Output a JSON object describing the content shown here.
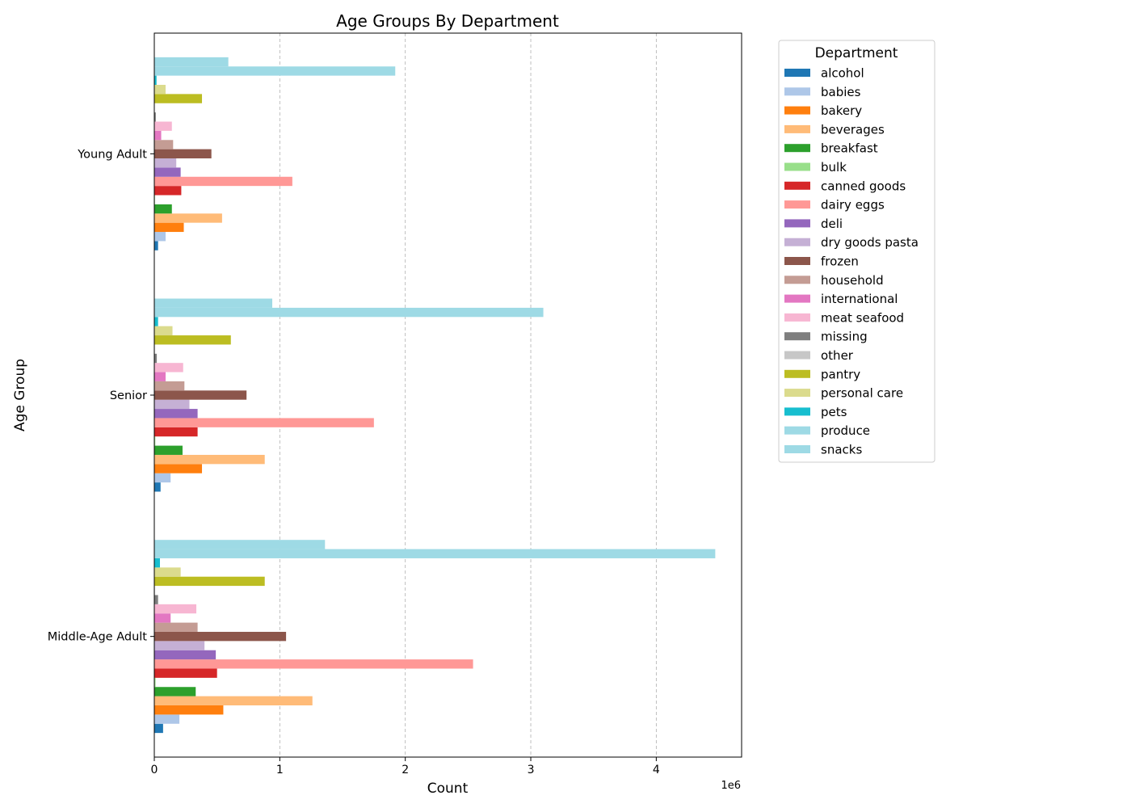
{
  "chart_data": {
    "type": "bar",
    "orientation": "horizontal",
    "title": "Age Groups By Department",
    "xlabel": "Count",
    "ylabel": "Age Group",
    "x_offset_label": "1e6",
    "xlim": [
      0,
      4.68
    ],
    "x_ticks": [
      0,
      1,
      2,
      3,
      4
    ],
    "x_tick_labels": [
      "0",
      "1",
      "2",
      "3",
      "4"
    ],
    "x_unit_multiplier": 1000000,
    "grid": "x",
    "legend_title": "Department",
    "legend_position": "outside-right",
    "categories": [
      "Middle-Age Adult",
      "Senior",
      "Young Adult"
    ],
    "series": [
      {
        "name": "alcohol",
        "color": "#1f77b4",
        "values": [
          70000,
          50000,
          30000
        ]
      },
      {
        "name": "babies",
        "color": "#aec7e8",
        "values": [
          200000,
          130000,
          90000
        ]
      },
      {
        "name": "bakery",
        "color": "#ff7f0e",
        "values": [
          550000,
          380000,
          235000
        ]
      },
      {
        "name": "beverages",
        "color": "#ffbb78",
        "values": [
          1260000,
          880000,
          540000
        ]
      },
      {
        "name": "breakfast",
        "color": "#2ca02c",
        "values": [
          330000,
          225000,
          140000
        ]
      },
      {
        "name": "bulk",
        "color": "#98df8a",
        "values": [
          10000,
          8000,
          5000
        ]
      },
      {
        "name": "canned goods",
        "color": "#d62728",
        "values": [
          500000,
          345000,
          215000
        ]
      },
      {
        "name": "dairy eggs",
        "color": "#ff9896",
        "values": [
          2540000,
          1750000,
          1100000
        ]
      },
      {
        "name": "deli",
        "color": "#9467bd",
        "values": [
          490000,
          345000,
          210000
        ]
      },
      {
        "name": "dry goods pasta",
        "color": "#c5b0d5",
        "values": [
          400000,
          280000,
          175000
        ]
      },
      {
        "name": "frozen",
        "color": "#8c564b",
        "values": [
          1050000,
          735000,
          455000
        ]
      },
      {
        "name": "household",
        "color": "#c49c94",
        "values": [
          345000,
          240000,
          150000
        ]
      },
      {
        "name": "international",
        "color": "#e377c2",
        "values": [
          130000,
          90000,
          55000
        ]
      },
      {
        "name": "meat seafood",
        "color": "#f7b6d2",
        "values": [
          335000,
          230000,
          140000
        ]
      },
      {
        "name": "missing",
        "color": "#7f7f7f",
        "values": [
          30000,
          20000,
          12000
        ]
      },
      {
        "name": "other",
        "color": "#c7c7c7",
        "values": [
          5000,
          4000,
          2000
        ]
      },
      {
        "name": "pantry",
        "color": "#bcbd22",
        "values": [
          880000,
          610000,
          380000
        ]
      },
      {
        "name": "personal care",
        "color": "#dbdb8d",
        "values": [
          210000,
          145000,
          90000
        ]
      },
      {
        "name": "pets",
        "color": "#17becf",
        "values": [
          45000,
          30000,
          18000
        ]
      },
      {
        "name": "produce",
        "color": "#9edae5",
        "values": [
          4470000,
          3100000,
          1920000
        ]
      },
      {
        "name": "snacks",
        "color": "#9edae5",
        "values": [
          1360000,
          940000,
          590000
        ]
      }
    ]
  }
}
